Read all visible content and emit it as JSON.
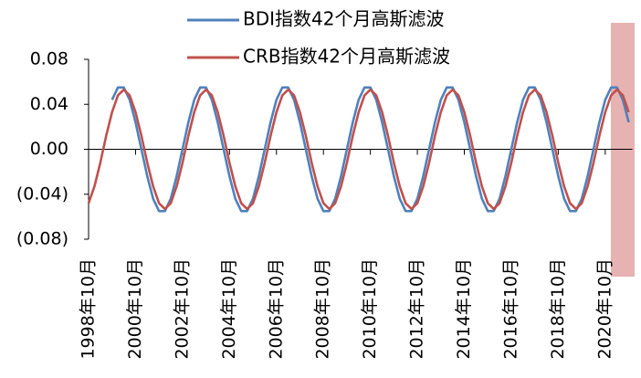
{
  "chart_data": {
    "type": "line",
    "categories": [
      "1998年10月",
      null,
      null,
      null,
      null,
      null,
      null,
      null,
      "2000年10月",
      null,
      null,
      null,
      null,
      null,
      null,
      null,
      "2002年10月",
      null,
      null,
      null,
      null,
      null,
      null,
      null,
      "2004年10月",
      null,
      null,
      null,
      null,
      null,
      null,
      null,
      "2006年10月",
      null,
      null,
      null,
      null,
      null,
      null,
      null,
      "2008年10月",
      null,
      null,
      null,
      null,
      null,
      null,
      null,
      "2010年10月",
      null,
      null,
      null,
      null,
      null,
      null,
      null,
      "2012年10月",
      null,
      null,
      null,
      null,
      null,
      null,
      null,
      "2014年10月",
      null,
      null,
      null,
      null,
      null,
      null,
      null,
      "2016年10月",
      null,
      null,
      null,
      null,
      null,
      null,
      null,
      "2018年10月",
      null,
      null,
      null,
      null,
      null,
      null,
      null,
      "2020年10月",
      null,
      null,
      null,
      null
    ],
    "series": [
      {
        "name": "BDI指数42个月高斯滤波",
        "color": "#4f81bd",
        "values": [
          null,
          null,
          null,
          null,
          0.044,
          0.055,
          0.055,
          0.044,
          0.024,
          0,
          -0.024,
          -0.044,
          -0.055,
          -0.055,
          -0.044,
          -0.024,
          0,
          0.024,
          0.044,
          0.055,
          0.055,
          0.044,
          0.024,
          0,
          -0.024,
          -0.044,
          -0.055,
          -0.055,
          -0.044,
          -0.024,
          0,
          0.024,
          0.044,
          0.055,
          0.055,
          0.044,
          0.024,
          0,
          -0.024,
          -0.044,
          -0.055,
          -0.055,
          -0.044,
          -0.024,
          0,
          0.024,
          0.044,
          0.055,
          0.055,
          0.044,
          0.024,
          0,
          -0.024,
          -0.044,
          -0.055,
          -0.055,
          -0.044,
          -0.024,
          0,
          0.024,
          0.044,
          0.055,
          0.055,
          0.044,
          0.024,
          0,
          -0.024,
          -0.044,
          -0.055,
          -0.055,
          -0.044,
          -0.024,
          0,
          0.024,
          0.044,
          0.055,
          0.055,
          0.044,
          0.024,
          0,
          -0.024,
          -0.044,
          -0.055,
          -0.055,
          -0.044,
          -0.024,
          0,
          0.024,
          0.044,
          0.055,
          0.055,
          0.044,
          0.024
        ]
      },
      {
        "name": "CRB指数42个月高斯滤波",
        "color": "#c0504d",
        "values": [
          -0.048,
          -0.033,
          -0.012,
          0.012,
          0.033,
          0.048,
          0.053,
          0.048,
          0.033,
          0.012,
          -0.012,
          -0.033,
          -0.048,
          -0.053,
          -0.048,
          -0.033,
          -0.012,
          0.012,
          0.033,
          0.048,
          0.053,
          0.048,
          0.033,
          0.012,
          -0.012,
          -0.033,
          -0.048,
          -0.053,
          -0.048,
          -0.033,
          -0.012,
          0.012,
          0.033,
          0.048,
          0.053,
          0.048,
          0.033,
          0.012,
          -0.012,
          -0.033,
          -0.048,
          -0.053,
          -0.048,
          -0.033,
          -0.012,
          0.012,
          0.033,
          0.048,
          0.053,
          0.048,
          0.033,
          0.012,
          -0.012,
          -0.033,
          -0.048,
          -0.053,
          -0.048,
          -0.033,
          -0.012,
          0.012,
          0.033,
          0.048,
          0.053,
          0.048,
          0.033,
          0.012,
          -0.012,
          -0.033,
          -0.048,
          -0.053,
          -0.048,
          -0.033,
          -0.012,
          0.012,
          0.033,
          0.048,
          0.053,
          0.048,
          0.033,
          0.012,
          -0.012,
          -0.033,
          -0.048,
          -0.053,
          -0.048,
          -0.033,
          -0.012,
          0.012,
          0.033,
          0.048,
          0.053,
          0.048,
          0.033
        ]
      }
    ],
    "ylim": [
      -0.08,
      0.08
    ],
    "yticks": [
      {
        "value": -0.08,
        "label": "(0.08)"
      },
      {
        "value": -0.04,
        "label": "(0.04)"
      },
      {
        "value": 0,
        "label": "0.00"
      },
      0.04,
      0.08
    ],
    "legend": "top",
    "grid": false
  }
}
